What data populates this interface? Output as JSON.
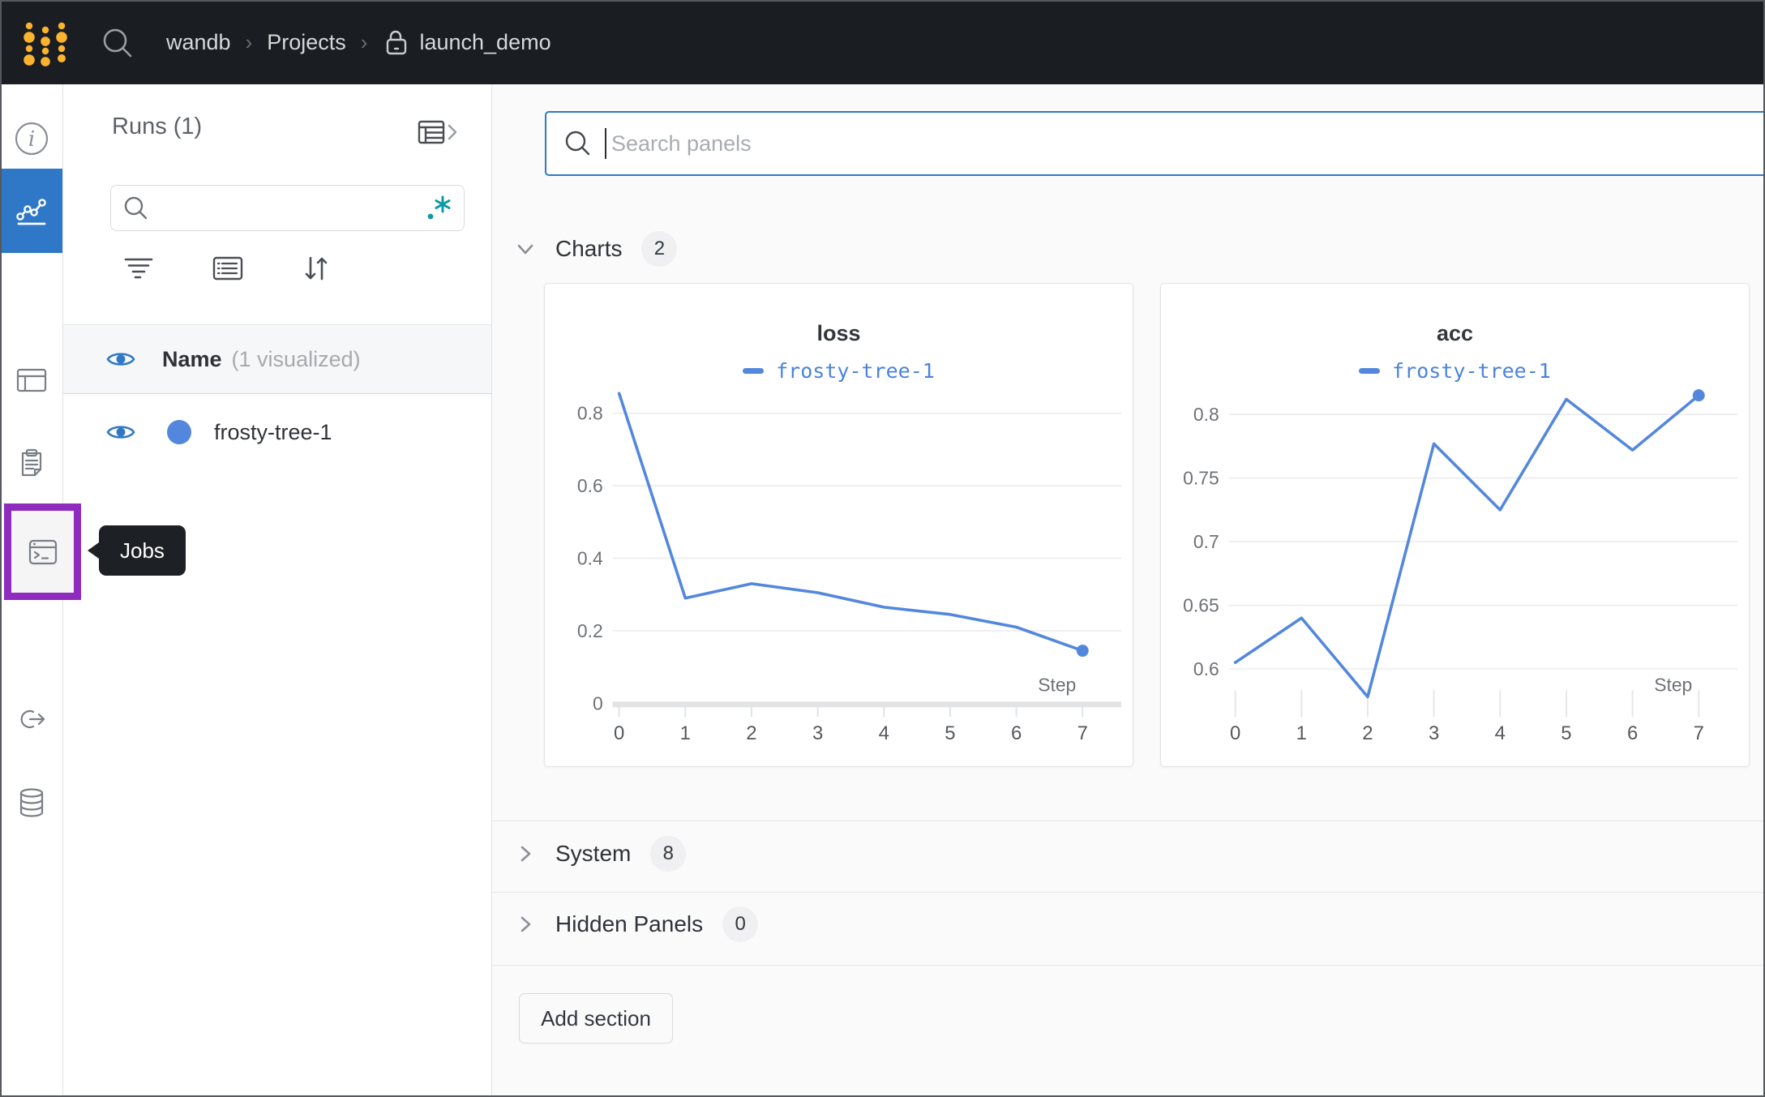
{
  "topbar": {
    "breadcrumb": {
      "team": "wandb",
      "separator": "›",
      "section": "Projects",
      "project": "launch_demo"
    }
  },
  "sidebar": {
    "tooltip": "Jobs",
    "icons": [
      "info-icon",
      "workspace-chart-icon",
      "table-icon",
      "logs-clipboard-icon",
      "sweeps-broom-icon",
      "jobs-terminal-icon",
      "automations-link-icon",
      "artifacts-database-icon"
    ],
    "selected_item": "workspace",
    "highlighted_item": "jobs"
  },
  "runs_panel": {
    "title": "Runs (1)",
    "search_value": "",
    "header": {
      "label": "Name",
      "suffix": "(1 visualized)"
    },
    "runs": [
      {
        "name": "frosty-tree-1",
        "color": "#5387dd",
        "visible": true
      }
    ]
  },
  "main": {
    "search_placeholder": "Search panels",
    "search_value": "",
    "sections": [
      {
        "label": "Charts",
        "count": "2",
        "expanded": true
      },
      {
        "label": "System",
        "count": "8",
        "expanded": false
      },
      {
        "label": "Hidden Panels",
        "count": "0",
        "expanded": false
      }
    ],
    "add_section_label": "Add section"
  },
  "chart_data": [
    {
      "type": "line",
      "title": "loss",
      "legend": "frosty-tree-1",
      "xlabel": "Step",
      "x": [
        0,
        1,
        2,
        3,
        4,
        5,
        6,
        7
      ],
      "values": [
        0.855,
        0.29,
        0.33,
        0.305,
        0.265,
        0.245,
        0.21,
        0.145
      ],
      "yticks": [
        0,
        0.2,
        0.4,
        0.6,
        0.8
      ],
      "ylim": [
        0,
        0.86
      ],
      "grid": true,
      "zero_baseline": true,
      "line_color": "#5387dd",
      "endpoint_marker": true,
      "legend_position": "top"
    },
    {
      "type": "line",
      "title": "acc",
      "legend": "frosty-tree-1",
      "xlabel": "Step",
      "x": [
        0,
        1,
        2,
        3,
        4,
        5,
        6,
        7
      ],
      "values": [
        0.605,
        0.64,
        0.578,
        0.777,
        0.725,
        0.812,
        0.772,
        0.815
      ],
      "yticks": [
        0.6,
        0.65,
        0.7,
        0.75,
        0.8
      ],
      "ylim": [
        0.573,
        0.818
      ],
      "grid": true,
      "zero_baseline": false,
      "line_color": "#5387dd",
      "endpoint_marker": true,
      "legend_position": "top"
    }
  ],
  "colors": {
    "topbar_bg": "#1a1d21",
    "logo_gold": "#fcb32d",
    "accent_blue": "#2e78c7",
    "run_blue": "#5387dd",
    "highlight_purple": "#8f2cbf",
    "regex_teal": "#0c9aa5",
    "main_bg": "#fafafa",
    "grid_gray": "#eaebed"
  }
}
